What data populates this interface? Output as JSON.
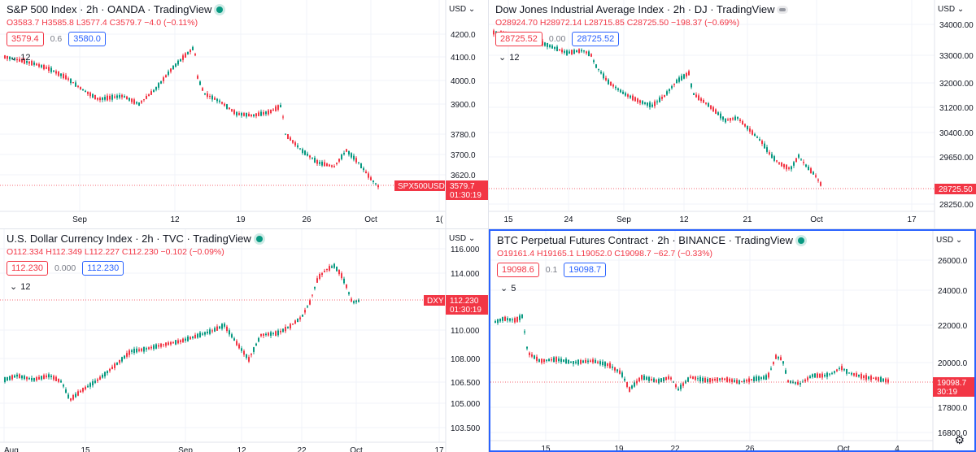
{
  "colors": {
    "up": "#089981",
    "down": "#f23645",
    "grid": "#f0f3fa",
    "accent": "#2962ff",
    "priceLine": "#f23645"
  },
  "panes": [
    {
      "title": "S&P 500 Index · 2h · OANDA · TradingView",
      "status_icon": "green-dot-icon",
      "ohlc": "O3583.7 H3585.8 L3577.4 C3579.7 −4.0 (−0.11%)",
      "sell": "3579.4",
      "spread": "0.6",
      "buy": "3580.0",
      "indicator_count": "12",
      "currency": "USD",
      "y_ticks": [
        "4200.0",
        "4100.0",
        "4000.0",
        "3900.0",
        "3780.0",
        "3700.0",
        "3620.0"
      ],
      "x_ticks": [
        "Sep",
        "12",
        "19",
        "26",
        "Oct",
        "1("
      ],
      "symbol_tag": "SPX500USD",
      "last_price": "3579.7",
      "countdown": "01:30:19"
    },
    {
      "title": "Dow Jones Industrial Average Index · 2h · DJ · TradingView",
      "status_icon": "gray-closed-icon",
      "ohlc": "O28924.70 H28972.14 L28715.85 C28725.50 −198.37 (−0.69%)",
      "sell": "28725.52",
      "spread": "0.00",
      "buy": "28725.52",
      "indicator_count": "12",
      "currency": "USD",
      "y_ticks": [
        "34000.00",
        "33000.00",
        "32000.00",
        "31200.00",
        "30400.00",
        "29650.00",
        "28250.00"
      ],
      "x_ticks": [
        "15",
        "24",
        "Sep",
        "12",
        "21",
        "Oct",
        "17"
      ],
      "last_price": "28725.50"
    },
    {
      "title": "U.S. Dollar Currency Index · 2h · TVC · TradingView",
      "status_icon": "green-dot-icon",
      "ohlc": "O112.334 H112.349 L112.227 C112.230 −0.102 (−0.09%)",
      "sell": "112.230",
      "spread": "0.000",
      "buy": "112.230",
      "indicator_count": "12",
      "currency": "USD",
      "y_ticks": [
        "116.000",
        "114.000",
        "110.000",
        "108.000",
        "106.500",
        "105.000",
        "103.500"
      ],
      "x_ticks": [
        "Aug",
        "15",
        "Sep",
        "12",
        "22",
        "Oct",
        "17"
      ],
      "symbol_tag": "DXY",
      "last_price": "112.230",
      "countdown": "01:30:19"
    },
    {
      "title": "BTC Perpetual Futures Contract · 2h · BINANCE · TradingView",
      "status_icon": "green-dot-icon",
      "ohlc": "O19161.4 H19165.1 L19052.0 C19098.7 −62.7 (−0.33%)",
      "sell": "19098.6",
      "spread": "0.1",
      "buy": "19098.7",
      "indicator_count": "5",
      "currency": "USD",
      "y_ticks": [
        "26000.0",
        "24000.0",
        "22000.0",
        "20000.0",
        "17800.0",
        "16800.0"
      ],
      "x_ticks": [
        "15",
        "19",
        "22",
        "26",
        "Oct",
        "4"
      ],
      "last_price": "19098.7",
      "countdown": "30:19"
    }
  ]
}
